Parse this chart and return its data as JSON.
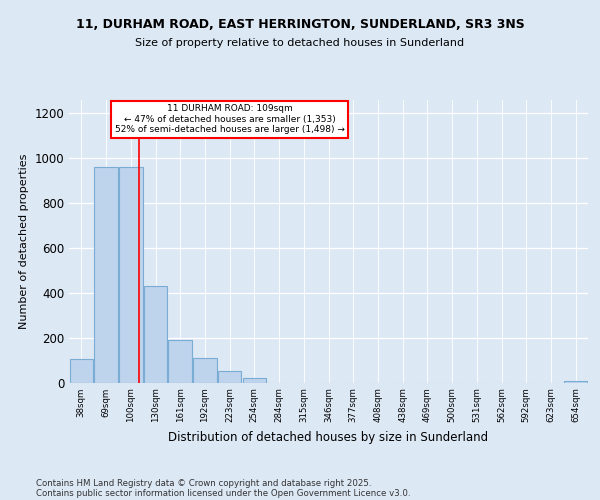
{
  "title1": "11, DURHAM ROAD, EAST HERRINGTON, SUNDERLAND, SR3 3NS",
  "title2": "Size of property relative to detached houses in Sunderland",
  "xlabel": "Distribution of detached houses by size in Sunderland",
  "ylabel": "Number of detached properties",
  "bin_labels": [
    "38sqm",
    "69sqm",
    "100sqm",
    "130sqm",
    "161sqm",
    "192sqm",
    "223sqm",
    "254sqm",
    "284sqm",
    "315sqm",
    "346sqm",
    "377sqm",
    "408sqm",
    "438sqm",
    "469sqm",
    "500sqm",
    "531sqm",
    "562sqm",
    "592sqm",
    "623sqm",
    "654sqm"
  ],
  "bar_heights": [
    107,
    962,
    960,
    430,
    190,
    110,
    50,
    20,
    0,
    0,
    0,
    0,
    0,
    0,
    0,
    0,
    0,
    0,
    0,
    0,
    8
  ],
  "bar_color": "#bed3ec",
  "bar_edge_color": "#7aadd4",
  "red_line_x": 2.35,
  "annotation_title": "11 DURHAM ROAD: 109sqm",
  "annotation_line2": "← 47% of detached houses are smaller (1,353)",
  "annotation_line3": "52% of semi-detached houses are larger (1,498) →",
  "footer1": "Contains HM Land Registry data © Crown copyright and database right 2025.",
  "footer2": "Contains public sector information licensed under the Open Government Licence v3.0.",
  "background_color": "#dde8f5",
  "plot_bg_color": "#dde8f5",
  "ylim": [
    0,
    1260
  ],
  "yticks": [
    0,
    200,
    400,
    600,
    800,
    1000,
    1200
  ]
}
